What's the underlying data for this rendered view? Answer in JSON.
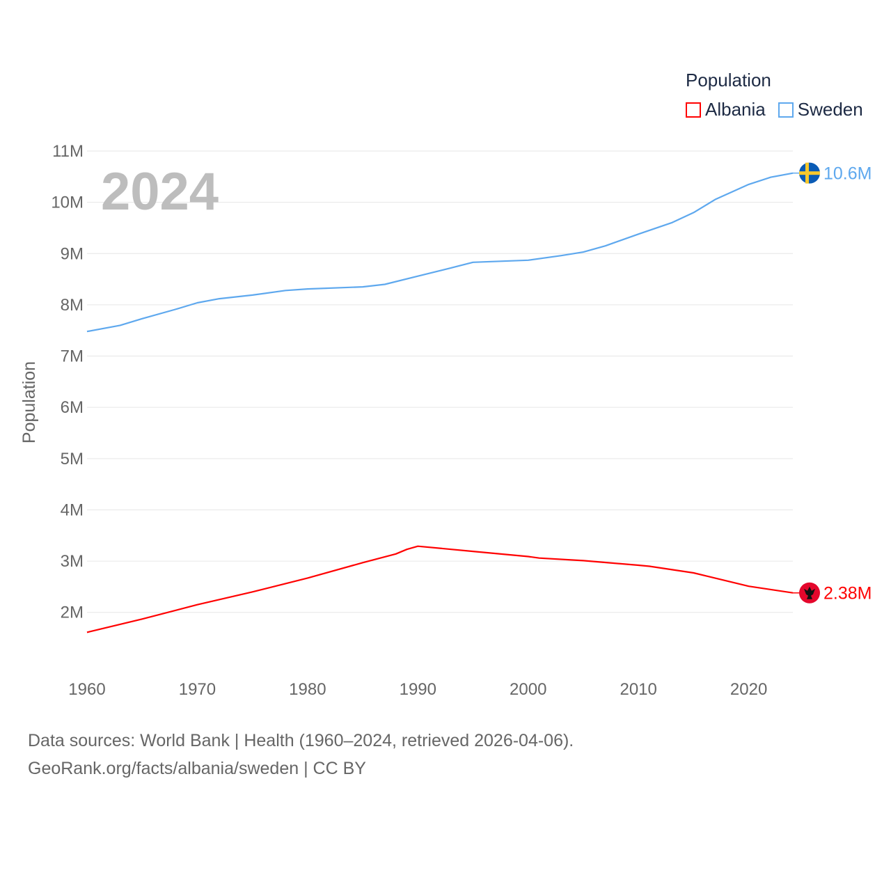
{
  "chart_data": {
    "type": "line",
    "title": "Population",
    "ylabel": "Population",
    "xlabel": "",
    "year_label": "2024",
    "ylim": [
      0,
      11000000
    ],
    "xlim": [
      1960,
      2024
    ],
    "y_ticks": [
      {
        "v": 2000000,
        "label": "2M"
      },
      {
        "v": 3000000,
        "label": "3M"
      },
      {
        "v": 4000000,
        "label": "4M"
      },
      {
        "v": 5000000,
        "label": "5M"
      },
      {
        "v": 6000000,
        "label": "6M"
      },
      {
        "v": 7000000,
        "label": "7M"
      },
      {
        "v": 8000000,
        "label": "8M"
      },
      {
        "v": 9000000,
        "label": "9M"
      },
      {
        "v": 10000000,
        "label": "10M"
      },
      {
        "v": 11000000,
        "label": "11M"
      }
    ],
    "x_ticks": [
      1960,
      1970,
      1980,
      1990,
      2000,
      2010,
      2020
    ],
    "grid": true,
    "legend_position": "top-right",
    "series": [
      {
        "name": "Albania",
        "color": "#ff0000",
        "end_label": "2.38M",
        "flag": "albania-flag",
        "x": [
          1960,
          1965,
          1970,
          1975,
          1980,
          1985,
          1988,
          1989,
          1990,
          1995,
          2000,
          2001,
          2005,
          2010,
          2011,
          2015,
          2020,
          2024
        ],
        "y": [
          1610000,
          1870000,
          2150000,
          2400000,
          2670000,
          2970000,
          3140000,
          3230000,
          3290000,
          3190000,
          3090000,
          3060000,
          3010000,
          2920000,
          2900000,
          2770000,
          2510000,
          2380000
        ]
      },
      {
        "name": "Sweden",
        "color": "#5ea8ee",
        "end_label": "10.6M",
        "flag": "sweden-flag",
        "x": [
          1960,
          1963,
          1965,
          1968,
          1970,
          1972,
          1975,
          1978,
          1980,
          1985,
          1987,
          1990,
          1993,
          1995,
          2000,
          2003,
          2005,
          2007,
          2010,
          2013,
          2015,
          2017,
          2020,
          2022,
          2024
        ],
        "y": [
          7480000,
          7600000,
          7730000,
          7910000,
          8040000,
          8120000,
          8190000,
          8280000,
          8310000,
          8350000,
          8400000,
          8560000,
          8720000,
          8830000,
          8870000,
          8960000,
          9030000,
          9150000,
          9380000,
          9600000,
          9800000,
          10060000,
          10350000,
          10490000,
          10570000
        ]
      }
    ]
  },
  "legend": {
    "title": "Population",
    "items": [
      "Albania",
      "Sweden"
    ]
  },
  "footer": {
    "line1": "Data sources: World Bank | Health (1960–2024, retrieved 2026-04-06).",
    "line2": "GeoRank.org/facts/albania/sweden | CC BY"
  }
}
